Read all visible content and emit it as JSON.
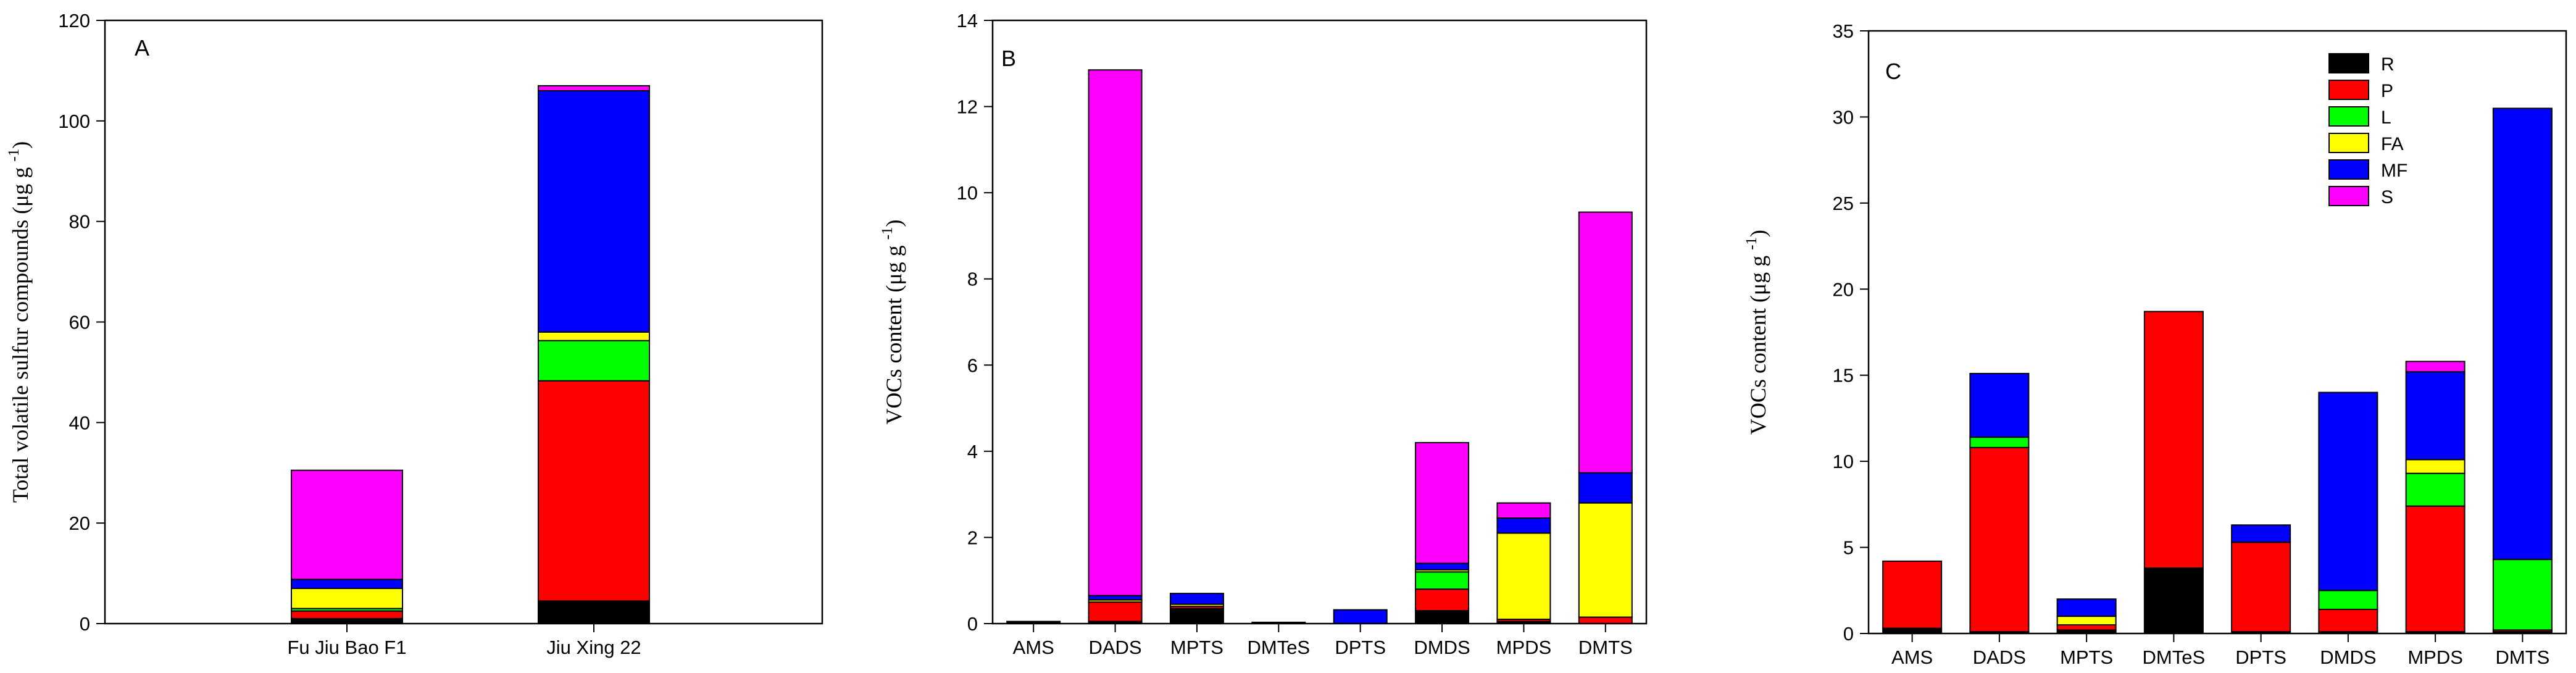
{
  "colors": {
    "R": "#000000",
    "P": "#ff0000",
    "L": "#00ff00",
    "FA": "#ffff00",
    "MF": "#0000ff",
    "S": "#ff00ff"
  },
  "chart_data": [
    {
      "type": "bar",
      "stacked": true,
      "panel_label": "A",
      "title": "",
      "xlabel": "",
      "ylabel": "Total volatile sulfur compounds",
      "ylabel_unit": "(μg g",
      "ylabel_sup": "-1",
      "ylim": [
        0,
        120
      ],
      "yticks": [
        "0",
        "20",
        "40",
        "60",
        "80",
        "100",
        "120"
      ],
      "xlim": [
        0,
        3
      ],
      "categories": [
        "Fu Jiu Bao F1",
        "Jiu Xing 22"
      ],
      "series": [
        {
          "key": "R",
          "values": [
            1,
            4.5
          ]
        },
        {
          "key": "P",
          "values": [
            1.5,
            43.8
          ]
        },
        {
          "key": "L",
          "values": [
            0.5,
            8
          ]
        },
        {
          "key": "FA",
          "values": [
            4,
            1.7
          ]
        },
        {
          "key": "MF",
          "values": [
            1.8,
            48
          ]
        },
        {
          "key": "S",
          "values": [
            21.7,
            1
          ]
        }
      ]
    },
    {
      "type": "bar",
      "stacked": true,
      "panel_label": "B",
      "title": "",
      "xlabel": "",
      "ylabel": "VOCs content",
      "ylabel_unit": "(μg g",
      "ylabel_sup": "-1",
      "ylim": [
        0,
        14
      ],
      "yticks": [
        "0",
        "2",
        "4",
        "6",
        "8",
        "10",
        "12",
        "14"
      ],
      "categories": [
        "AMS",
        "DADS",
        "MPTS",
        "DMTeS",
        "DPTS",
        "DMDS",
        "MPDS",
        "DMTS"
      ],
      "series": [
        {
          "key": "R",
          "values": [
            0.05,
            0.05,
            0.35,
            0.03,
            0,
            0.3,
            0.05,
            0
          ]
        },
        {
          "key": "P",
          "values": [
            0,
            0.45,
            0.05,
            0,
            0,
            0.5,
            0.05,
            0.15
          ]
        },
        {
          "key": "L",
          "values": [
            0,
            0,
            0,
            0,
            0,
            0.4,
            0,
            0
          ]
        },
        {
          "key": "FA",
          "values": [
            0,
            0.05,
            0.05,
            0,
            0,
            0.05,
            2.0,
            2.65
          ]
        },
        {
          "key": "MF",
          "values": [
            0,
            0.1,
            0.25,
            0,
            0.32,
            0.15,
            0.35,
            0.7
          ]
        },
        {
          "key": "S",
          "values": [
            0,
            12.2,
            0,
            0,
            0,
            2.8,
            0.35,
            6.05
          ]
        }
      ]
    },
    {
      "type": "bar",
      "stacked": true,
      "panel_label": "C",
      "title": "",
      "xlabel": "",
      "ylabel": "VOCs content",
      "ylabel_unit": "(μg g",
      "ylabel_sup": "-1",
      "ylim": [
        0,
        35
      ],
      "yticks": [
        "0",
        "5",
        "10",
        "15",
        "20",
        "25",
        "30",
        "35"
      ],
      "categories": [
        "AMS",
        "DADS",
        "MPTS",
        "DMTeS",
        "DPTS",
        "DMDS",
        "MPDS",
        "DMTS"
      ],
      "legend": {
        "placement": "top-right",
        "entries": [
          "R",
          "P",
          "L",
          "FA",
          "MF",
          "S"
        ]
      },
      "series": [
        {
          "key": "R",
          "values": [
            0.3,
            0.1,
            0.2,
            3.8,
            0.1,
            0.1,
            0.1,
            0.1
          ]
        },
        {
          "key": "P",
          "values": [
            3.9,
            10.7,
            0.3,
            14.9,
            5.2,
            1.3,
            7.3,
            0.1
          ]
        },
        {
          "key": "L",
          "values": [
            0,
            0.6,
            0,
            0,
            0,
            1.1,
            1.9,
            4.1
          ]
        },
        {
          "key": "FA",
          "values": [
            0,
            0,
            0.5,
            0,
            0,
            0,
            0.8,
            0
          ]
        },
        {
          "key": "MF",
          "values": [
            0,
            3.7,
            1.0,
            0,
            1.0,
            11.5,
            5.1,
            26.2
          ]
        },
        {
          "key": "S",
          "values": [
            0,
            0,
            0,
            0,
            0,
            0,
            0.6,
            0
          ]
        }
      ]
    }
  ]
}
